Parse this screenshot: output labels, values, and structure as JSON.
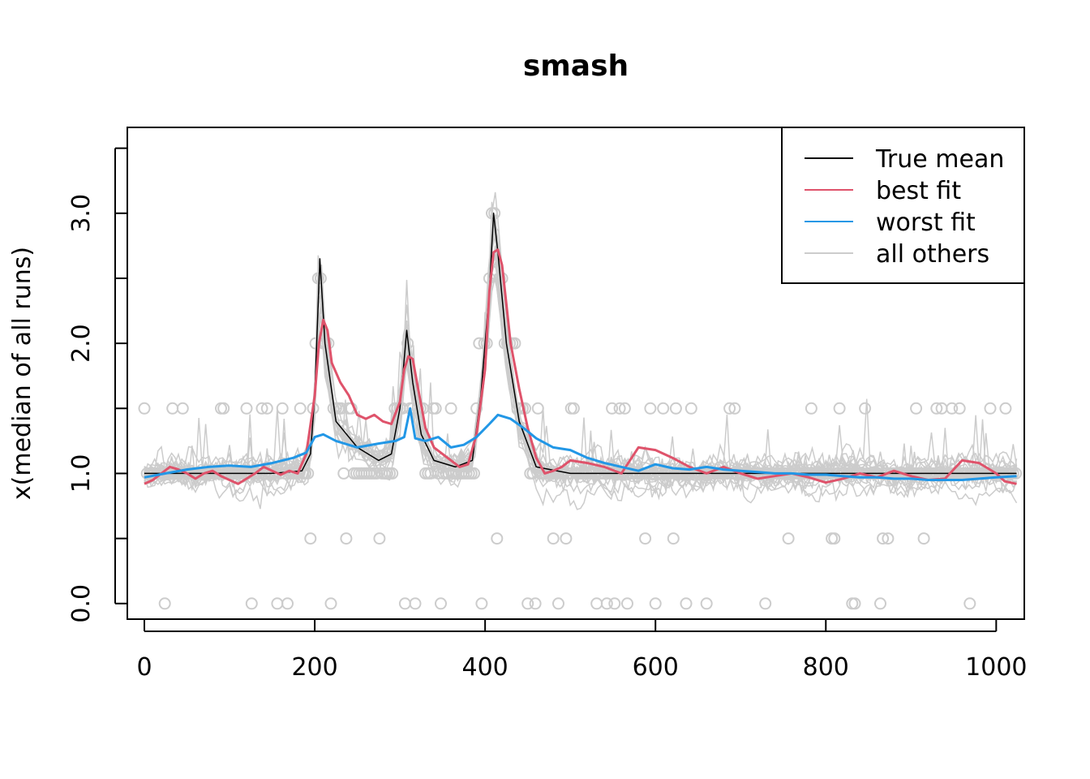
{
  "chart_data": {
    "type": "line",
    "title": "smash",
    "xlabel": "",
    "ylabel": "x(median of all runs)",
    "xlim": [
      -20,
      1033
    ],
    "ylim": [
      -0.12,
      3.66
    ],
    "x_ticks": [
      0,
      200,
      400,
      600,
      800,
      1000
    ],
    "y_ticks": [
      0.0,
      0.5,
      1.0,
      1.5,
      2.0,
      2.5,
      3.0,
      3.5
    ],
    "y_tick_labels": {
      "0.0": "0.0",
      "1.0": "1.0",
      "2.0": "2.0",
      "3.0": "3.0"
    },
    "legend": {
      "position": "top-right",
      "entries": [
        {
          "label": "True mean",
          "color": "#000000"
        },
        {
          "label": "best fit",
          "color": "#DF536B"
        },
        {
          "label": "worst fit",
          "color": "#2297E6"
        },
        {
          "label": "all others",
          "color": "#CCCCCC"
        }
      ]
    },
    "colors": {
      "true_mean": "#000000",
      "best_fit": "#DF536B",
      "worst_fit": "#2297E6",
      "others": "#CCCCCC"
    },
    "series": [
      {
        "name": "True mean",
        "x": [
          0,
          50,
          100,
          150,
          185,
          195,
          200,
          206,
          212,
          225,
          250,
          275,
          290,
          300,
          308,
          315,
          325,
          340,
          365,
          385,
          395,
          405,
          410,
          415,
          425,
          440,
          460,
          500,
          600,
          700,
          800,
          900,
          1000,
          1024
        ],
        "y": [
          1.0,
          1.0,
          1.0,
          1.0,
          1.02,
          1.15,
          1.6,
          2.65,
          2.0,
          1.4,
          1.2,
          1.1,
          1.15,
          1.5,
          2.1,
          1.7,
          1.3,
          1.1,
          1.05,
          1.1,
          1.6,
          2.4,
          3.0,
          2.7,
          2.0,
          1.4,
          1.05,
          1.0,
          1.0,
          1.0,
          1.0,
          1.0,
          1.0,
          1.0
        ]
      },
      {
        "name": "best fit",
        "x": [
          0,
          10,
          20,
          30,
          40,
          50,
          60,
          70,
          80,
          90,
          100,
          110,
          120,
          130,
          140,
          150,
          160,
          170,
          180,
          190,
          200,
          205,
          210,
          215,
          220,
          230,
          240,
          250,
          260,
          270,
          280,
          290,
          300,
          305,
          310,
          315,
          320,
          330,
          340,
          350,
          360,
          370,
          380,
          390,
          400,
          405,
          410,
          415,
          420,
          425,
          430,
          440,
          450,
          460,
          470,
          480,
          490,
          500,
          520,
          540,
          560,
          580,
          600,
          620,
          640,
          660,
          680,
          700,
          720,
          740,
          760,
          780,
          800,
          820,
          840,
          860,
          880,
          900,
          920,
          940,
          960,
          980,
          1000,
          1010,
          1024
        ],
        "y": [
          0.92,
          0.95,
          1.0,
          1.05,
          1.03,
          1.0,
          0.96,
          1.0,
          1.02,
          0.98,
          0.95,
          0.92,
          0.96,
          1.0,
          1.05,
          1.02,
          0.99,
          1.02,
          1.0,
          1.15,
          1.6,
          2.0,
          2.18,
          2.1,
          1.85,
          1.7,
          1.6,
          1.45,
          1.42,
          1.45,
          1.4,
          1.38,
          1.55,
          1.8,
          1.9,
          1.88,
          1.7,
          1.35,
          1.2,
          1.15,
          1.1,
          1.05,
          1.07,
          1.3,
          1.8,
          2.4,
          2.7,
          2.72,
          2.6,
          2.3,
          2.0,
          1.65,
          1.35,
          1.12,
          1.0,
          1.02,
          1.05,
          1.1,
          1.08,
          1.05,
          1.0,
          1.2,
          1.18,
          1.12,
          1.05,
          1.0,
          1.05,
          1.0,
          0.96,
          0.98,
          1.0,
          0.97,
          0.93,
          0.96,
          1.0,
          0.97,
          1.02,
          0.98,
          0.95,
          0.96,
          1.1,
          1.08,
          1.0,
          0.94,
          0.92
        ]
      },
      {
        "name": "worst fit",
        "x": [
          0,
          25,
          50,
          75,
          100,
          125,
          150,
          175,
          190,
          200,
          210,
          225,
          250,
          275,
          295,
          305,
          312,
          318,
          330,
          345,
          360,
          375,
          390,
          405,
          415,
          430,
          445,
          460,
          480,
          500,
          520,
          540,
          560,
          580,
          600,
          620,
          640,
          660,
          680,
          700,
          720,
          740,
          760,
          780,
          800,
          820,
          840,
          860,
          880,
          900,
          920,
          940,
          960,
          980,
          1000,
          1024
        ],
        "y": [
          0.97,
          1.0,
          1.03,
          1.05,
          1.06,
          1.05,
          1.08,
          1.12,
          1.16,
          1.28,
          1.3,
          1.25,
          1.2,
          1.23,
          1.25,
          1.28,
          1.5,
          1.27,
          1.25,
          1.28,
          1.2,
          1.22,
          1.28,
          1.38,
          1.45,
          1.42,
          1.35,
          1.27,
          1.2,
          1.18,
          1.12,
          1.08,
          1.05,
          1.02,
          1.07,
          1.04,
          1.03,
          1.05,
          1.03,
          1.02,
          1.01,
          1.0,
          1.0,
          0.99,
          0.99,
          0.98,
          0.97,
          0.97,
          0.96,
          0.96,
          0.95,
          0.95,
          0.95,
          0.96,
          0.97,
          0.98
        ]
      }
    ]
  }
}
